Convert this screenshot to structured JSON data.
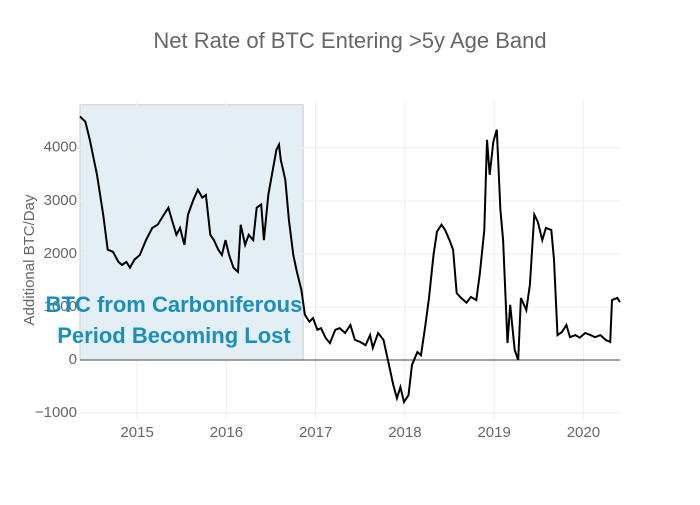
{
  "chart_data": {
    "type": "line",
    "title": "Net Rate of BTC Entering >5y Age Band",
    "y_label": "Additional BTC/Day",
    "annotation_lines": [
      "BTC from Carboniferous",
      "Period Becoming Lost"
    ],
    "shaded_region": {
      "x": [
        2014.36,
        2016.86
      ],
      "y": [
        0,
        4810
      ],
      "color": "#e3eff5"
    },
    "xlim": [
      2014.36,
      2020.41
    ],
    "xticks": [
      2015,
      2016,
      2017,
      2018,
      2019,
      2020
    ],
    "ylim": [
      -1130,
      4900
    ],
    "yticks": [
      {
        "value": -1000,
        "label": "−1000"
      },
      0,
      1000,
      2000,
      3000,
      4000
    ],
    "grid": true,
    "series": [
      {
        "color": "#000000",
        "x": [
          2014.36,
          2014.42,
          2014.47,
          2014.55,
          2014.62,
          2014.67,
          2014.73,
          2014.79,
          2014.83,
          2014.88,
          2014.92,
          2014.97,
          2015.03,
          2015.1,
          2015.17,
          2015.23,
          2015.3,
          2015.35,
          2015.39,
          2015.44,
          2015.48,
          2015.53,
          2015.57,
          2015.63,
          2015.68,
          2015.73,
          2015.77,
          2015.82,
          2015.86,
          2015.91,
          2015.95,
          2015.99,
          2016.03,
          2016.08,
          2016.13,
          2016.16,
          2016.21,
          2016.25,
          2016.3,
          2016.34,
          2016.39,
          2016.42,
          2016.47,
          2016.51,
          2016.56,
          2016.59,
          2016.61,
          2016.66,
          2016.7,
          2016.75,
          2016.79,
          2016.84,
          2016.88,
          2016.93,
          2016.97,
          2017.02,
          2017.06,
          2017.11,
          2017.16,
          2017.22,
          2017.27,
          2017.33,
          2017.39,
          2017.44,
          2017.5,
          2017.56,
          2017.61,
          2017.64,
          2017.7,
          2017.76,
          2017.81,
          2017.87,
          2017.91,
          2017.95,
          2017.99,
          2018.04,
          2018.08,
          2018.14,
          2018.18,
          2018.23,
          2018.27,
          2018.32,
          2018.36,
          2018.41,
          2018.45,
          2018.5,
          2018.54,
          2018.58,
          2018.63,
          2018.69,
          2018.74,
          2018.8,
          2018.84,
          2018.89,
          2018.92,
          2018.95,
          2018.99,
          2019.03,
          2019.07,
          2019.1,
          2019.15,
          2019.18,
          2019.23,
          2019.27,
          2019.3,
          2019.36,
          2019.4,
          2019.45,
          2019.49,
          2019.54,
          2019.58,
          2019.64,
          2019.67,
          2019.71,
          2019.76,
          2019.81,
          2019.85,
          2019.91,
          2019.96,
          2020.02,
          2020.08,
          2020.13,
          2020.19,
          2020.25,
          2020.3,
          2020.32,
          2020.38,
          2020.41
        ],
        "values": [
          4590,
          4490,
          4150,
          3490,
          2740,
          2080,
          2040,
          1850,
          1790,
          1850,
          1740,
          1890,
          1980,
          2260,
          2490,
          2550,
          2740,
          2870,
          2640,
          2360,
          2490,
          2170,
          2740,
          3020,
          3210,
          3060,
          3110,
          2360,
          2260,
          2080,
          1980,
          2260,
          1980,
          1740,
          1660,
          2550,
          2170,
          2360,
          2260,
          2870,
          2930,
          2260,
          3110,
          3490,
          3960,
          4060,
          3770,
          3400,
          2640,
          1980,
          1660,
          1320,
          850,
          720,
          790,
          570,
          600,
          420,
          320,
          570,
          600,
          510,
          660,
          380,
          340,
          280,
          470,
          230,
          510,
          380,
          0,
          -470,
          -720,
          -510,
          -790,
          -660,
          -90,
          150,
          90,
          660,
          1170,
          1980,
          2420,
          2550,
          2450,
          2260,
          2080,
          1260,
          1170,
          1080,
          1190,
          1130,
          1640,
          2450,
          4150,
          3490,
          4110,
          4340,
          2830,
          2260,
          320,
          1040,
          190,
          0,
          1170,
          940,
          1420,
          2740,
          2600,
          2260,
          2490,
          2450,
          1890,
          470,
          530,
          660,
          430,
          470,
          420,
          510,
          470,
          430,
          470,
          380,
          340,
          1130,
          1170,
          1090
        ]
      }
    ]
  }
}
